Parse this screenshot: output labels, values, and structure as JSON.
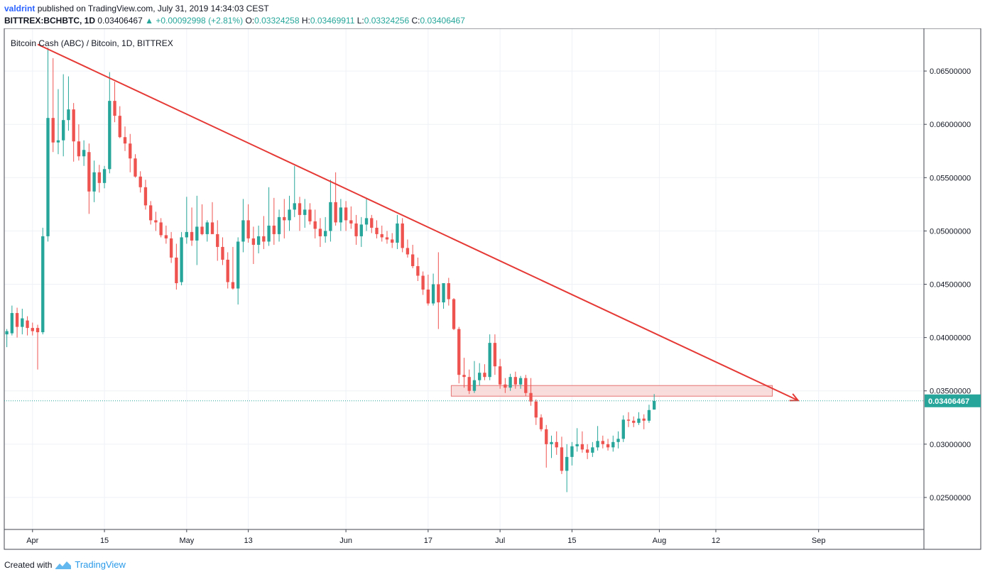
{
  "header": {
    "author": "valdrint",
    "published_text": "published on TradingView.com, July 31, 2019 14:34:03 CEST",
    "symbol": "BITTREX:BCHBTC, 1D",
    "last": "0.03406467",
    "change_arrow": "▲",
    "change": "+0.00092998 (+2.81%)",
    "o_label": "O:",
    "o": "0.03324258",
    "h_label": "H:",
    "h": "0.03469911",
    "l_label": "L:",
    "l": "0.03324256",
    "c_label": "C:",
    "c": "0.03406467"
  },
  "footer": {
    "created_with": "Created with",
    "brand": "TradingView"
  },
  "chart_data": {
    "type": "candlestick",
    "title": "Bitcoin Cash (ABC) / Bitcoin, 1D, BITTREX",
    "ylim": [
      0.022,
      0.069
    ],
    "y_ticks": [
      0.065,
      0.06,
      0.055,
      0.05,
      0.045,
      0.04,
      0.035,
      0.03,
      0.025
    ],
    "y_tick_labels": [
      "0.06500000",
      "0.06000000",
      "0.05500000",
      "0.05000000",
      "0.04500000",
      "0.04000000",
      "0.03500000",
      "0.03000000",
      "0.02500000"
    ],
    "x_tick_labels": [
      {
        "label": "Apr",
        "date": "2019-04-01"
      },
      {
        "label": "15",
        "date": "2019-04-15"
      },
      {
        "label": "May",
        "date": "2019-05-01"
      },
      {
        "label": "13",
        "date": "2019-05-13"
      },
      {
        "label": "Jun",
        "date": "2019-06-01"
      },
      {
        "label": "17",
        "date": "2019-06-17"
      },
      {
        "label": "Jul",
        "date": "2019-07-01"
      },
      {
        "label": "15",
        "date": "2019-07-15"
      },
      {
        "label": "Aug",
        "date": "2019-08-01"
      },
      {
        "label": "12",
        "date": "2019-08-12"
      },
      {
        "label": "Sep",
        "date": "2019-09-01"
      }
    ],
    "x_range": [
      "2019-03-27",
      "2019-09-22"
    ],
    "last_price": 0.03406467,
    "last_price_label": "0.03406467",
    "up_color": "#26a69a",
    "down_color": "#ef5350",
    "trendline": {
      "from": {
        "date": "2019-04-02",
        "price": 0.0675
      },
      "to": {
        "date": "2019-08-28",
        "price": 0.0341
      },
      "color": "#e53935"
    },
    "zone": {
      "from_date": "2019-06-22",
      "to_date": "2019-08-23",
      "low": 0.0345,
      "high": 0.0355,
      "fill": "#f7d4d4",
      "stroke": "#e57373"
    },
    "candles": [
      {
        "date": "2019-03-27",
        "o": 0.0403,
        "h": 0.0408,
        "l": 0.0391,
        "c": 0.0406
      },
      {
        "date": "2019-03-28",
        "o": 0.0404,
        "h": 0.043,
        "l": 0.0402,
        "c": 0.0423
      },
      {
        "date": "2019-03-29",
        "o": 0.0423,
        "h": 0.0428,
        "l": 0.04,
        "c": 0.041
      },
      {
        "date": "2019-03-30",
        "o": 0.041,
        "h": 0.0427,
        "l": 0.0403,
        "c": 0.0418
      },
      {
        "date": "2019-03-31",
        "o": 0.0416,
        "h": 0.042,
        "l": 0.0402,
        "c": 0.0409
      },
      {
        "date": "2019-04-01",
        "o": 0.0409,
        "h": 0.0414,
        "l": 0.0402,
        "c": 0.0406
      },
      {
        "date": "2019-04-02",
        "o": 0.0409,
        "h": 0.0412,
        "l": 0.037,
        "c": 0.0405
      },
      {
        "date": "2019-04-03",
        "o": 0.0405,
        "h": 0.0503,
        "l": 0.0403,
        "c": 0.0495
      },
      {
        "date": "2019-04-04",
        "o": 0.0495,
        "h": 0.0672,
        "l": 0.049,
        "c": 0.0606
      },
      {
        "date": "2019-04-05",
        "o": 0.0606,
        "h": 0.0662,
        "l": 0.0574,
        "c": 0.0583
      },
      {
        "date": "2019-04-06",
        "o": 0.0583,
        "h": 0.0633,
        "l": 0.0572,
        "c": 0.0585
      },
      {
        "date": "2019-04-07",
        "o": 0.0585,
        "h": 0.0647,
        "l": 0.057,
        "c": 0.0604
      },
      {
        "date": "2019-04-08",
        "o": 0.0604,
        "h": 0.0645,
        "l": 0.0594,
        "c": 0.0614
      },
      {
        "date": "2019-04-09",
        "o": 0.0614,
        "h": 0.062,
        "l": 0.0565,
        "c": 0.0584
      },
      {
        "date": "2019-04-10",
        "o": 0.0584,
        "h": 0.06,
        "l": 0.0566,
        "c": 0.057
      },
      {
        "date": "2019-04-11",
        "o": 0.057,
        "h": 0.0585,
        "l": 0.0561,
        "c": 0.0576
      },
      {
        "date": "2019-04-12",
        "o": 0.0574,
        "h": 0.0582,
        "l": 0.0516,
        "c": 0.0537
      },
      {
        "date": "2019-04-13",
        "o": 0.0537,
        "h": 0.0566,
        "l": 0.0527,
        "c": 0.0555
      },
      {
        "date": "2019-04-14",
        "o": 0.0555,
        "h": 0.0562,
        "l": 0.0536,
        "c": 0.0545
      },
      {
        "date": "2019-04-15",
        "o": 0.0545,
        "h": 0.0561,
        "l": 0.054,
        "c": 0.0558
      },
      {
        "date": "2019-04-16",
        "o": 0.0558,
        "h": 0.0649,
        "l": 0.0554,
        "c": 0.0622
      },
      {
        "date": "2019-04-17",
        "o": 0.0622,
        "h": 0.064,
        "l": 0.0602,
        "c": 0.0608
      },
      {
        "date": "2019-04-18",
        "o": 0.0608,
        "h": 0.0617,
        "l": 0.0587,
        "c": 0.0588
      },
      {
        "date": "2019-04-19",
        "o": 0.0588,
        "h": 0.0598,
        "l": 0.0575,
        "c": 0.0582
      },
      {
        "date": "2019-04-20",
        "o": 0.0582,
        "h": 0.0591,
        "l": 0.0555,
        "c": 0.0568
      },
      {
        "date": "2019-04-21",
        "o": 0.0568,
        "h": 0.0572,
        "l": 0.055,
        "c": 0.0551
      },
      {
        "date": "2019-04-22",
        "o": 0.0551,
        "h": 0.0556,
        "l": 0.0536,
        "c": 0.0541
      },
      {
        "date": "2019-04-23",
        "o": 0.0541,
        "h": 0.0548,
        "l": 0.052,
        "c": 0.0524
      },
      {
        "date": "2019-04-24",
        "o": 0.0524,
        "h": 0.0528,
        "l": 0.0506,
        "c": 0.051
      },
      {
        "date": "2019-04-25",
        "o": 0.051,
        "h": 0.0518,
        "l": 0.05,
        "c": 0.0508
      },
      {
        "date": "2019-04-26",
        "o": 0.0508,
        "h": 0.0512,
        "l": 0.0494,
        "c": 0.0496
      },
      {
        "date": "2019-04-27",
        "o": 0.0496,
        "h": 0.0505,
        "l": 0.0488,
        "c": 0.0493
      },
      {
        "date": "2019-04-28",
        "o": 0.0493,
        "h": 0.0499,
        "l": 0.047,
        "c": 0.0475
      },
      {
        "date": "2019-04-29",
        "o": 0.0475,
        "h": 0.0488,
        "l": 0.0445,
        "c": 0.0451
      },
      {
        "date": "2019-04-30",
        "o": 0.0452,
        "h": 0.0499,
        "l": 0.0449,
        "c": 0.0494
      },
      {
        "date": "2019-05-01",
        "o": 0.0494,
        "h": 0.0532,
        "l": 0.0488,
        "c": 0.0499
      },
      {
        "date": "2019-05-02",
        "o": 0.0499,
        "h": 0.0522,
        "l": 0.0486,
        "c": 0.0491
      },
      {
        "date": "2019-05-03",
        "o": 0.0491,
        "h": 0.0533,
        "l": 0.0468,
        "c": 0.0504
      },
      {
        "date": "2019-05-04",
        "o": 0.0504,
        "h": 0.0525,
        "l": 0.0496,
        "c": 0.0497
      },
      {
        "date": "2019-05-05",
        "o": 0.0497,
        "h": 0.051,
        "l": 0.049,
        "c": 0.0508
      },
      {
        "date": "2019-05-06",
        "o": 0.0508,
        "h": 0.0527,
        "l": 0.05,
        "c": 0.0497
      },
      {
        "date": "2019-05-07",
        "o": 0.0497,
        "h": 0.051,
        "l": 0.0472,
        "c": 0.0485
      },
      {
        "date": "2019-05-08",
        "o": 0.0485,
        "h": 0.0494,
        "l": 0.0468,
        "c": 0.0473
      },
      {
        "date": "2019-05-09",
        "o": 0.0473,
        "h": 0.048,
        "l": 0.0446,
        "c": 0.0452
      },
      {
        "date": "2019-05-10",
        "o": 0.0452,
        "h": 0.0485,
        "l": 0.0445,
        "c": 0.0446
      },
      {
        "date": "2019-05-11",
        "o": 0.0446,
        "h": 0.0494,
        "l": 0.0431,
        "c": 0.049
      },
      {
        "date": "2019-05-12",
        "o": 0.049,
        "h": 0.053,
        "l": 0.048,
        "c": 0.051
      },
      {
        "date": "2019-05-13",
        "o": 0.051,
        "h": 0.0525,
        "l": 0.0489,
        "c": 0.0493
      },
      {
        "date": "2019-05-14",
        "o": 0.0493,
        "h": 0.0504,
        "l": 0.0469,
        "c": 0.0487
      },
      {
        "date": "2019-05-15",
        "o": 0.0487,
        "h": 0.0505,
        "l": 0.0479,
        "c": 0.0495
      },
      {
        "date": "2019-05-16",
        "o": 0.0495,
        "h": 0.0514,
        "l": 0.0483,
        "c": 0.049
      },
      {
        "date": "2019-05-17",
        "o": 0.049,
        "h": 0.0541,
        "l": 0.0486,
        "c": 0.0505
      },
      {
        "date": "2019-05-18",
        "o": 0.0505,
        "h": 0.0531,
        "l": 0.0487,
        "c": 0.0497
      },
      {
        "date": "2019-05-19",
        "o": 0.0497,
        "h": 0.052,
        "l": 0.049,
        "c": 0.0513
      },
      {
        "date": "2019-05-20",
        "o": 0.0513,
        "h": 0.053,
        "l": 0.0493,
        "c": 0.051
      },
      {
        "date": "2019-05-21",
        "o": 0.051,
        "h": 0.0533,
        "l": 0.05,
        "c": 0.052
      },
      {
        "date": "2019-05-22",
        "o": 0.052,
        "h": 0.0561,
        "l": 0.0513,
        "c": 0.0526
      },
      {
        "date": "2019-05-23",
        "o": 0.0526,
        "h": 0.0532,
        "l": 0.05,
        "c": 0.0515
      },
      {
        "date": "2019-05-24",
        "o": 0.0515,
        "h": 0.053,
        "l": 0.0503,
        "c": 0.052
      },
      {
        "date": "2019-05-25",
        "o": 0.052,
        "h": 0.0526,
        "l": 0.0506,
        "c": 0.0509
      },
      {
        "date": "2019-05-26",
        "o": 0.0509,
        "h": 0.052,
        "l": 0.0493,
        "c": 0.0502
      },
      {
        "date": "2019-05-27",
        "o": 0.0502,
        "h": 0.0512,
        "l": 0.0485,
        "c": 0.0495
      },
      {
        "date": "2019-05-28",
        "o": 0.0495,
        "h": 0.0513,
        "l": 0.0489,
        "c": 0.05
      },
      {
        "date": "2019-05-29",
        "o": 0.05,
        "h": 0.0548,
        "l": 0.049,
        "c": 0.0527
      },
      {
        "date": "2019-05-30",
        "o": 0.0527,
        "h": 0.0555,
        "l": 0.0505,
        "c": 0.0508
      },
      {
        "date": "2019-05-31",
        "o": 0.0508,
        "h": 0.053,
        "l": 0.05,
        "c": 0.0522
      },
      {
        "date": "2019-06-01",
        "o": 0.0522,
        "h": 0.0528,
        "l": 0.05,
        "c": 0.051
      },
      {
        "date": "2019-06-02",
        "o": 0.051,
        "h": 0.0523,
        "l": 0.0502,
        "c": 0.0507
      },
      {
        "date": "2019-06-03",
        "o": 0.0507,
        "h": 0.0515,
        "l": 0.0487,
        "c": 0.0495
      },
      {
        "date": "2019-06-04",
        "o": 0.0495,
        "h": 0.0513,
        "l": 0.0485,
        "c": 0.0506
      },
      {
        "date": "2019-06-05",
        "o": 0.0506,
        "h": 0.0531,
        "l": 0.05,
        "c": 0.0512
      },
      {
        "date": "2019-06-06",
        "o": 0.0512,
        "h": 0.0515,
        "l": 0.0498,
        "c": 0.0503
      },
      {
        "date": "2019-06-07",
        "o": 0.0503,
        "h": 0.051,
        "l": 0.0493,
        "c": 0.0497
      },
      {
        "date": "2019-06-08",
        "o": 0.0497,
        "h": 0.0505,
        "l": 0.049,
        "c": 0.0494
      },
      {
        "date": "2019-06-09",
        "o": 0.0494,
        "h": 0.05,
        "l": 0.0488,
        "c": 0.0492
      },
      {
        "date": "2019-06-10",
        "o": 0.0492,
        "h": 0.0498,
        "l": 0.0484,
        "c": 0.0489
      },
      {
        "date": "2019-06-11",
        "o": 0.0489,
        "h": 0.0515,
        "l": 0.0483,
        "c": 0.0507
      },
      {
        "date": "2019-06-12",
        "o": 0.0507,
        "h": 0.0512,
        "l": 0.048,
        "c": 0.0484
      },
      {
        "date": "2019-06-13",
        "o": 0.0484,
        "h": 0.0492,
        "l": 0.0475,
        "c": 0.0478
      },
      {
        "date": "2019-06-14",
        "o": 0.0478,
        "h": 0.0487,
        "l": 0.0465,
        "c": 0.0467
      },
      {
        "date": "2019-06-15",
        "o": 0.0467,
        "h": 0.0475,
        "l": 0.0453,
        "c": 0.0458
      },
      {
        "date": "2019-06-16",
        "o": 0.0458,
        "h": 0.0462,
        "l": 0.044,
        "c": 0.0445
      },
      {
        "date": "2019-06-17",
        "o": 0.0445,
        "h": 0.0459,
        "l": 0.043,
        "c": 0.0432
      },
      {
        "date": "2019-06-18",
        "o": 0.0432,
        "h": 0.046,
        "l": 0.043,
        "c": 0.045
      },
      {
        "date": "2019-06-19",
        "o": 0.045,
        "h": 0.048,
        "l": 0.0408,
        "c": 0.0433
      },
      {
        "date": "2019-06-20",
        "o": 0.0433,
        "h": 0.0451,
        "l": 0.0427,
        "c": 0.0451
      },
      {
        "date": "2019-06-21",
        "o": 0.0451,
        "h": 0.0456,
        "l": 0.043,
        "c": 0.0436
      },
      {
        "date": "2019-06-22",
        "o": 0.0436,
        "h": 0.0437,
        "l": 0.0407,
        "c": 0.0408
      },
      {
        "date": "2019-06-23",
        "o": 0.0408,
        "h": 0.041,
        "l": 0.0357,
        "c": 0.0365
      },
      {
        "date": "2019-06-24",
        "o": 0.0365,
        "h": 0.0381,
        "l": 0.0353,
        "c": 0.0363
      },
      {
        "date": "2019-06-25",
        "o": 0.0363,
        "h": 0.037,
        "l": 0.0347,
        "c": 0.035
      },
      {
        "date": "2019-06-26",
        "o": 0.035,
        "h": 0.0378,
        "l": 0.0348,
        "c": 0.036
      },
      {
        "date": "2019-06-27",
        "o": 0.036,
        "h": 0.0376,
        "l": 0.0355,
        "c": 0.0367
      },
      {
        "date": "2019-06-28",
        "o": 0.0367,
        "h": 0.0375,
        "l": 0.036,
        "c": 0.0363
      },
      {
        "date": "2019-06-29",
        "o": 0.0363,
        "h": 0.0403,
        "l": 0.036,
        "c": 0.0395
      },
      {
        "date": "2019-06-30",
        "o": 0.0395,
        "h": 0.0403,
        "l": 0.0365,
        "c": 0.0373
      },
      {
        "date": "2019-07-01",
        "o": 0.0373,
        "h": 0.038,
        "l": 0.0352,
        "c": 0.0356
      },
      {
        "date": "2019-07-02",
        "o": 0.0356,
        "h": 0.0362,
        "l": 0.0348,
        "c": 0.0353
      },
      {
        "date": "2019-07-03",
        "o": 0.0353,
        "h": 0.0366,
        "l": 0.035,
        "c": 0.0363
      },
      {
        "date": "2019-07-04",
        "o": 0.0363,
        "h": 0.0368,
        "l": 0.0352,
        "c": 0.0356
      },
      {
        "date": "2019-07-05",
        "o": 0.0356,
        "h": 0.0364,
        "l": 0.0352,
        "c": 0.0362
      },
      {
        "date": "2019-07-06",
        "o": 0.0362,
        "h": 0.0365,
        "l": 0.0345,
        "c": 0.0348
      },
      {
        "date": "2019-07-07",
        "o": 0.0348,
        "h": 0.0362,
        "l": 0.0336,
        "c": 0.034
      },
      {
        "date": "2019-07-08",
        "o": 0.034,
        "h": 0.0342,
        "l": 0.0318,
        "c": 0.0325
      },
      {
        "date": "2019-07-09",
        "o": 0.0325,
        "h": 0.0328,
        "l": 0.0312,
        "c": 0.0314
      },
      {
        "date": "2019-07-10",
        "o": 0.0314,
        "h": 0.0318,
        "l": 0.0278,
        "c": 0.03
      },
      {
        "date": "2019-07-11",
        "o": 0.03,
        "h": 0.0308,
        "l": 0.0287,
        "c": 0.0302
      },
      {
        "date": "2019-07-12",
        "o": 0.0302,
        "h": 0.0312,
        "l": 0.029,
        "c": 0.0297
      },
      {
        "date": "2019-07-13",
        "o": 0.0297,
        "h": 0.0307,
        "l": 0.0272,
        "c": 0.0275
      },
      {
        "date": "2019-07-14",
        "o": 0.0275,
        "h": 0.03,
        "l": 0.0255,
        "c": 0.0288
      },
      {
        "date": "2019-07-15",
        "o": 0.0288,
        "h": 0.0302,
        "l": 0.028,
        "c": 0.0298
      },
      {
        "date": "2019-07-16",
        "o": 0.0298,
        "h": 0.0315,
        "l": 0.0293,
        "c": 0.03
      },
      {
        "date": "2019-07-17",
        "o": 0.03,
        "h": 0.0312,
        "l": 0.0292,
        "c": 0.0295
      },
      {
        "date": "2019-07-18",
        "o": 0.0295,
        "h": 0.03,
        "l": 0.0286,
        "c": 0.0292
      },
      {
        "date": "2019-07-19",
        "o": 0.0292,
        "h": 0.0302,
        "l": 0.0288,
        "c": 0.0297
      },
      {
        "date": "2019-07-20",
        "o": 0.0297,
        "h": 0.0317,
        "l": 0.0294,
        "c": 0.0303
      },
      {
        "date": "2019-07-21",
        "o": 0.0303,
        "h": 0.0308,
        "l": 0.0296,
        "c": 0.03
      },
      {
        "date": "2019-07-22",
        "o": 0.03,
        "h": 0.0305,
        "l": 0.0294,
        "c": 0.0297
      },
      {
        "date": "2019-07-23",
        "o": 0.0297,
        "h": 0.0308,
        "l": 0.0293,
        "c": 0.0302
      },
      {
        "date": "2019-07-24",
        "o": 0.0302,
        "h": 0.0312,
        "l": 0.0296,
        "c": 0.0305
      },
      {
        "date": "2019-07-25",
        "o": 0.0305,
        "h": 0.0327,
        "l": 0.0302,
        "c": 0.0323
      },
      {
        "date": "2019-07-26",
        "o": 0.0323,
        "h": 0.033,
        "l": 0.0316,
        "c": 0.0322
      },
      {
        "date": "2019-07-27",
        "o": 0.0322,
        "h": 0.0326,
        "l": 0.0316,
        "c": 0.032
      },
      {
        "date": "2019-07-28",
        "o": 0.032,
        "h": 0.033,
        "l": 0.0318,
        "c": 0.0324
      },
      {
        "date": "2019-07-29",
        "o": 0.0324,
        "h": 0.0328,
        "l": 0.0314,
        "c": 0.0322
      },
      {
        "date": "2019-07-30",
        "o": 0.0322,
        "h": 0.0337,
        "l": 0.032,
        "c": 0.0332
      },
      {
        "date": "2019-07-31",
        "o": 0.03324258,
        "h": 0.03469911,
        "l": 0.03324256,
        "c": 0.03406467
      }
    ]
  }
}
